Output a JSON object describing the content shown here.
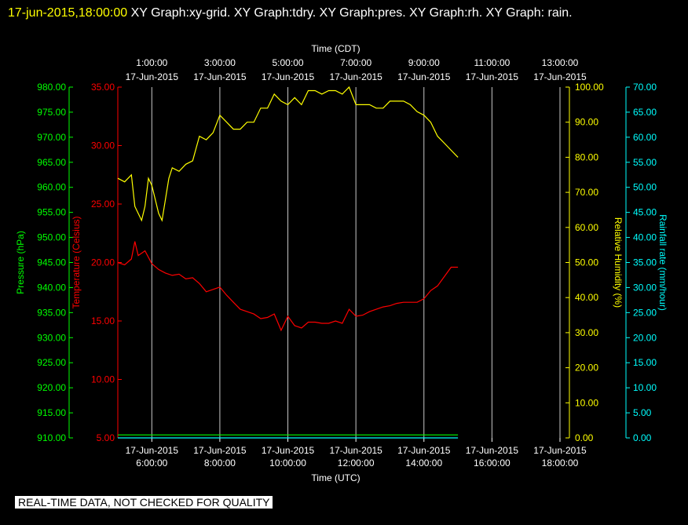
{
  "header": {
    "timestamp": "17-jun-2015,18:00:00",
    "rest": "  XY Graph:xy-grid.  XY Graph:tdry.  XY Graph:pres.  XY Graph:rh.  XY Graph: rain."
  },
  "disclaimer": "REAL-TIME DATA, NOT CHECKED FOR QUALITY",
  "colors": {
    "pressure": "#00ff00",
    "temperature": "#ff0000",
    "humidity": "#ffff00",
    "rain": "#00ffff",
    "grid": "#ffffff",
    "text": "#ffffff"
  },
  "chart_data": {
    "type": "line",
    "top_axis": {
      "title": "Time (CDT)",
      "ticks": [
        {
          "time": "1:00:00",
          "date": "17-Jun-2015"
        },
        {
          "time": "3:00:00",
          "date": "17-Jun-2015"
        },
        {
          "time": "5:00:00",
          "date": "17-Jun-2015"
        },
        {
          "time": "7:00:00",
          "date": "17-Jun-2015"
        },
        {
          "time": "9:00:00",
          "date": "17-Jun-2015"
        },
        {
          "time": "11:00:00",
          "date": "17-Jun-2015"
        },
        {
          "time": "13:00:00",
          "date": "17-Jun-2015"
        }
      ]
    },
    "bottom_axis": {
      "title": "Time (UTC)",
      "range_hours_utc": [
        5.0,
        18.0
      ],
      "ticks": [
        {
          "date": "17-Jun-2015",
          "time": "6:00:00",
          "hour": 6
        },
        {
          "date": "17-Jun-2015",
          "time": "8:00:00",
          "hour": 8
        },
        {
          "date": "17-Jun-2015",
          "time": "10:00:00",
          "hour": 10
        },
        {
          "date": "17-Jun-2015",
          "time": "12:00:00",
          "hour": 12
        },
        {
          "date": "17-Jun-2015",
          "time": "14:00:00",
          "hour": 14
        },
        {
          "date": "17-Jun-2015",
          "time": "16:00:00",
          "hour": 16
        },
        {
          "date": "17-Jun-2015",
          "time": "18:00:00",
          "hour": 18
        }
      ]
    },
    "pressure_axis": {
      "label": "Pressure (hPa)",
      "range": [
        910,
        980
      ],
      "ticks": [
        "980.00",
        "975.00",
        "970.00",
        "965.00",
        "960.00",
        "955.00",
        "950.00",
        "945.00",
        "940.00",
        "935.00",
        "930.00",
        "925.00",
        "920.00",
        "915.00",
        "910.00"
      ]
    },
    "temperature_axis": {
      "label": "Temperature (Celsius)",
      "range": [
        5,
        35
      ],
      "ticks": [
        "35.00",
        "30.00",
        "25.00",
        "20.00",
        "15.00",
        "10.00",
        "5.00"
      ]
    },
    "humidity_axis": {
      "label": "Relative Humidity (%)",
      "range": [
        0,
        100
      ],
      "ticks": [
        "100.00",
        "90.00",
        "80.00",
        "70.00",
        "60.00",
        "50.00",
        "40.00",
        "30.00",
        "20.00",
        "10.00",
        "0.00"
      ]
    },
    "rain_axis": {
      "label": "Rainfall rate (mm/hour)",
      "range": [
        0,
        70
      ],
      "ticks": [
        "70.00",
        "65.00",
        "60.00",
        "55.00",
        "50.00",
        "45.00",
        "40.00",
        "35.00",
        "30.00",
        "25.00",
        "20.00",
        "15.00",
        "10.00",
        "5.00",
        "0.00"
      ]
    },
    "series": [
      {
        "key": "humidity",
        "axis": "humidity",
        "x": [
          5.0,
          5.2,
          5.4,
          5.5,
          5.7,
          5.8,
          5.9,
          6.0,
          6.2,
          6.3,
          6.5,
          6.6,
          6.8,
          7.0,
          7.2,
          7.4,
          7.6,
          7.8,
          8.0,
          8.2,
          8.4,
          8.6,
          8.8,
          9.0,
          9.2,
          9.4,
          9.6,
          9.8,
          10.0,
          10.2,
          10.4,
          10.6,
          10.8,
          11.0,
          11.2,
          11.4,
          11.6,
          11.8,
          12.0,
          12.2,
          12.4,
          12.6,
          12.8,
          13.0,
          13.2,
          13.4,
          13.6,
          13.8,
          14.0,
          14.2,
          14.4,
          14.6,
          14.8,
          15.0
        ],
        "values": [
          74,
          73,
          75,
          66,
          62,
          66,
          74,
          72,
          64,
          62,
          74,
          77,
          76,
          78,
          79,
          86,
          85,
          87,
          92,
          90,
          88,
          88,
          90,
          90,
          94,
          94,
          98,
          96,
          95,
          97,
          95,
          99,
          99,
          98,
          99,
          99,
          98,
          100,
          95,
          95,
          95,
          94,
          94,
          96,
          96,
          96,
          95,
          93,
          92,
          90,
          86,
          84,
          82,
          80
        ]
      },
      {
        "key": "temperature",
        "axis": "temperature",
        "x": [
          5.0,
          5.2,
          5.4,
          5.5,
          5.6,
          5.8,
          6.0,
          6.2,
          6.4,
          6.6,
          6.8,
          7.0,
          7.2,
          7.4,
          7.6,
          7.8,
          8.0,
          8.2,
          8.4,
          8.6,
          8.8,
          9.0,
          9.2,
          9.4,
          9.6,
          9.8,
          10.0,
          10.2,
          10.4,
          10.6,
          10.8,
          11.0,
          11.2,
          11.4,
          11.6,
          11.8,
          12.0,
          12.2,
          12.4,
          12.6,
          12.8,
          13.0,
          13.2,
          13.4,
          13.6,
          13.8,
          14.0,
          14.2,
          14.4,
          14.6,
          14.8,
          15.0
        ],
        "values": [
          20.0,
          19.8,
          20.3,
          21.8,
          20.6,
          21.0,
          19.9,
          19.4,
          19.1,
          18.9,
          19.0,
          18.6,
          18.7,
          18.2,
          17.5,
          17.7,
          17.9,
          17.2,
          16.6,
          16.0,
          15.8,
          15.6,
          15.2,
          15.3,
          15.6,
          14.2,
          15.4,
          14.6,
          14.4,
          14.9,
          14.9,
          14.8,
          14.8,
          15.0,
          14.8,
          16.0,
          15.4,
          15.5,
          15.8,
          16.0,
          16.2,
          16.3,
          16.5,
          16.6,
          16.6,
          16.6,
          16.9,
          17.6,
          18.0,
          18.8,
          19.6,
          19.6
        ]
      },
      {
        "key": "rain",
        "axis": "rain",
        "x": [
          5.0,
          15.0
        ],
        "values": [
          0.0,
          0.0
        ]
      },
      {
        "key": "pressure",
        "axis": "pressure",
        "x": [
          5.0,
          15.0
        ],
        "values": [
          910.6,
          910.6
        ]
      }
    ]
  }
}
